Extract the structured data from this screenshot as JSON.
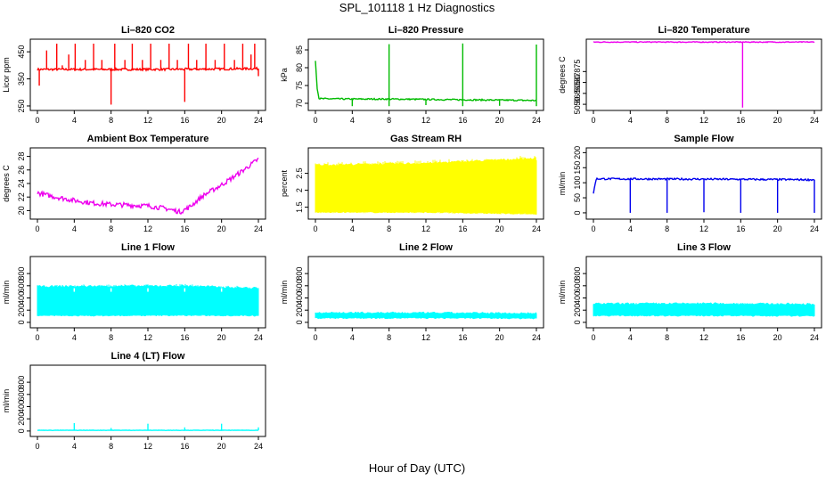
{
  "figure": {
    "title": "SPL_101118  1 Hz Diagnostics",
    "xlabel": "Hour of Day (UTC)"
  },
  "chart_data": [
    {
      "type": "line",
      "title": "Li–820 CO2",
      "ylabel": "Licor ppm",
      "color": "#ff0000",
      "xlim": [
        0,
        24
      ],
      "x_ticks": [
        0,
        4,
        8,
        12,
        16,
        20,
        24
      ],
      "ylim": [
        240,
        490
      ],
      "y_ticks": [
        250,
        350,
        450
      ],
      "baseline": 385,
      "noise": 4,
      "series": [
        {
          "x": [
            0,
            6,
            12,
            18,
            24
          ],
          "y": [
            385,
            385,
            385,
            386,
            388
          ]
        }
      ],
      "spikes": [
        {
          "x": 0.2,
          "y": 325
        },
        {
          "x": 1.0,
          "y": 455
        },
        {
          "x": 2.1,
          "y": 480
        },
        {
          "x": 2.7,
          "y": 400
        },
        {
          "x": 3.4,
          "y": 440
        },
        {
          "x": 4.1,
          "y": 480
        },
        {
          "x": 5.2,
          "y": 420
        },
        {
          "x": 6.1,
          "y": 480
        },
        {
          "x": 7.0,
          "y": 420
        },
        {
          "x": 8.0,
          "y": 255
        },
        {
          "x": 8.4,
          "y": 480
        },
        {
          "x": 9.5,
          "y": 420
        },
        {
          "x": 10.3,
          "y": 480
        },
        {
          "x": 11.4,
          "y": 420
        },
        {
          "x": 12.3,
          "y": 480
        },
        {
          "x": 13.4,
          "y": 420
        },
        {
          "x": 14.3,
          "y": 480
        },
        {
          "x": 15.2,
          "y": 420
        },
        {
          "x": 16.0,
          "y": 265
        },
        {
          "x": 16.4,
          "y": 480
        },
        {
          "x": 17.3,
          "y": 420
        },
        {
          "x": 18.3,
          "y": 480
        },
        {
          "x": 19.3,
          "y": 420
        },
        {
          "x": 20.3,
          "y": 480
        },
        {
          "x": 21.4,
          "y": 420
        },
        {
          "x": 22.3,
          "y": 480
        },
        {
          "x": 23.2,
          "y": 440
        },
        {
          "x": 23.6,
          "y": 480
        },
        {
          "x": 24.0,
          "y": 360
        }
      ]
    },
    {
      "type": "line",
      "title": "Li–820 Pressure",
      "ylabel": "kPa",
      "color": "#00bb00",
      "xlim": [
        0,
        24
      ],
      "x_ticks": [
        0,
        4,
        8,
        12,
        16,
        20,
        24
      ],
      "ylim": [
        68.5,
        87.5
      ],
      "y_ticks": [
        70,
        75,
        80,
        85
      ],
      "noise": 0.2,
      "series": [
        {
          "x": [
            0,
            0.2,
            0.4,
            4,
            8,
            12,
            16,
            20,
            24
          ],
          "y": [
            82,
            74,
            71.3,
            71.2,
            71.2,
            71.1,
            71.0,
            70.9,
            70.8
          ]
        }
      ],
      "spikes": [
        {
          "x": 4.0,
          "y": 69.2
        },
        {
          "x": 8.0,
          "y": 86.6
        },
        {
          "x": 8.0,
          "y": 69.2
        },
        {
          "x": 12.0,
          "y": 69.5
        },
        {
          "x": 16.0,
          "y": 86.8
        },
        {
          "x": 16.0,
          "y": 69.2
        },
        {
          "x": 20.0,
          "y": 69.3
        },
        {
          "x": 24.0,
          "y": 86.5
        },
        {
          "x": 24.0,
          "y": 69.2
        }
      ]
    },
    {
      "type": "line",
      "title": "Li–820 Temperature",
      "ylabel": "degrees C",
      "color": "#ee00ee",
      "xlim": [
        0,
        24
      ],
      "x_ticks": [
        0,
        4,
        8,
        12,
        16,
        20,
        24
      ],
      "ylim": [
        50.858,
        50.889
      ],
      "y_ticks": [
        50.86,
        50.865,
        50.87,
        50.875
      ],
      "noise": 0.0002,
      "series": [
        {
          "x": [
            0,
            12,
            24
          ],
          "y": [
            50.8885,
            50.8885,
            50.8885
          ]
        }
      ],
      "spikes": [
        {
          "x": 16.2,
          "y": 50.8585
        }
      ]
    },
    {
      "type": "line",
      "title": "Ambient Box Temperature",
      "ylabel": "degrees C",
      "color": "#ee00ee",
      "xlim": [
        0,
        24
      ],
      "x_ticks": [
        0,
        4,
        8,
        12,
        16,
        20,
        24
      ],
      "ylim": [
        19,
        29
      ],
      "y_ticks": [
        20,
        22,
        24,
        26,
        28
      ],
      "noise": 0.35,
      "series": [
        {
          "x": [
            0,
            2,
            4,
            6,
            8,
            10,
            12,
            14,
            15.5,
            16.5,
            18,
            20,
            22,
            24
          ],
          "y": [
            22.6,
            22.0,
            21.5,
            21.1,
            20.9,
            20.8,
            20.7,
            20.3,
            19.8,
            20.5,
            22.2,
            23.8,
            25.6,
            27.6
          ]
        }
      ],
      "spikes": []
    },
    {
      "type": "area",
      "title": "Gas Stream RH",
      "ylabel": "percent",
      "color": "#ffff00",
      "xlim": [
        0,
        24
      ],
      "x_ticks": [
        0,
        4,
        8,
        12,
        16,
        20,
        24
      ],
      "ylim": [
        1.2,
        3.2
      ],
      "y_ticks": [
        1.5,
        2.0,
        2.5
      ],
      "band": {
        "x": [
          0,
          12,
          24
        ],
        "top": [
          2.75,
          2.8,
          2.95
        ],
        "bottom": [
          1.35,
          1.35,
          1.3
        ]
      },
      "spikes": []
    },
    {
      "type": "line",
      "title": "Sample Flow",
      "ylabel": "ml/min",
      "color": "#0000ee",
      "xlim": [
        0,
        24
      ],
      "x_ticks": [
        0,
        4,
        8,
        12,
        16,
        20,
        24
      ],
      "ylim": [
        -15,
        210
      ],
      "y_ticks": [
        0,
        50,
        100,
        150,
        200
      ],
      "noise": 3,
      "series": [
        {
          "x": [
            0,
            0.3,
            12,
            24
          ],
          "y": [
            65,
            113,
            112,
            110
          ]
        }
      ],
      "spikes": [
        {
          "x": 4.0,
          "y": 0
        },
        {
          "x": 8.0,
          "y": 0
        },
        {
          "x": 12.0,
          "y": 2
        },
        {
          "x": 16.0,
          "y": 0
        },
        {
          "x": 20.0,
          "y": 0
        },
        {
          "x": 24.0,
          "y": 0
        }
      ]
    },
    {
      "type": "area",
      "title": "Line 1 Flow",
      "ylabel": "ml/min",
      "color": "#00ffff",
      "xlim": [
        0,
        24
      ],
      "x_ticks": [
        0,
        4,
        8,
        12,
        16,
        20,
        24
      ],
      "ylim": [
        -60,
        1050
      ],
      "y_ticks": [
        0,
        200,
        400,
        600,
        800
      ],
      "band": {
        "x": [
          0,
          8,
          16,
          24
        ],
        "top": [
          590,
          595,
          600,
          560
        ],
        "bottom": [
          110,
          110,
          115,
          110
        ]
      },
      "spikes": [
        {
          "x": 4,
          "y": 560
        },
        {
          "x": 8,
          "y": 560
        },
        {
          "x": 12,
          "y": 560
        },
        {
          "x": 16,
          "y": 560
        },
        {
          "x": 20,
          "y": 560
        }
      ]
    },
    {
      "type": "area",
      "title": "Line 2 Flow",
      "ylabel": "ml/min",
      "color": "#00ffff",
      "xlim": [
        0,
        24
      ],
      "x_ticks": [
        0,
        4,
        8,
        12,
        16,
        20,
        24
      ],
      "ylim": [
        -60,
        1050
      ],
      "y_ticks": [
        0,
        200,
        400,
        600,
        800
      ],
      "band": {
        "x": [
          0,
          12,
          24
        ],
        "top": [
          160,
          155,
          150
        ],
        "bottom": [
          70,
          70,
          65
        ]
      },
      "spikes": []
    },
    {
      "type": "area",
      "title": "Line 3 Flow",
      "ylabel": "ml/min",
      "color": "#00ffff",
      "xlim": [
        0,
        24
      ],
      "x_ticks": [
        0,
        4,
        8,
        12,
        16,
        20,
        24
      ],
      "ylim": [
        -60,
        1050
      ],
      "y_ticks": [
        0,
        200,
        400,
        600,
        800
      ],
      "band": {
        "x": [
          0,
          12,
          24
        ],
        "top": [
          305,
          310,
          300
        ],
        "bottom": [
          110,
          110,
          105
        ]
      },
      "spikes": []
    },
    {
      "type": "line",
      "title": "Line 4 (LT) Flow",
      "ylabel": "ml/min",
      "color": "#00ffff",
      "xlim": [
        0,
        24
      ],
      "x_ticks": [
        0,
        4,
        8,
        12,
        16,
        20,
        24
      ],
      "ylim": [
        -60,
        1050
      ],
      "y_ticks": [
        0,
        200,
        400,
        600,
        800
      ],
      "noise": 3,
      "series": [
        {
          "x": [
            0,
            24
          ],
          "y": [
            12,
            12
          ]
        }
      ],
      "spikes": [
        {
          "x": 4.0,
          "y": 130
        },
        {
          "x": 8.0,
          "y": 50
        },
        {
          "x": 12.0,
          "y": 120
        },
        {
          "x": 16.0,
          "y": 60
        },
        {
          "x": 20.0,
          "y": 120
        },
        {
          "x": 24.0,
          "y": 60
        }
      ]
    }
  ]
}
